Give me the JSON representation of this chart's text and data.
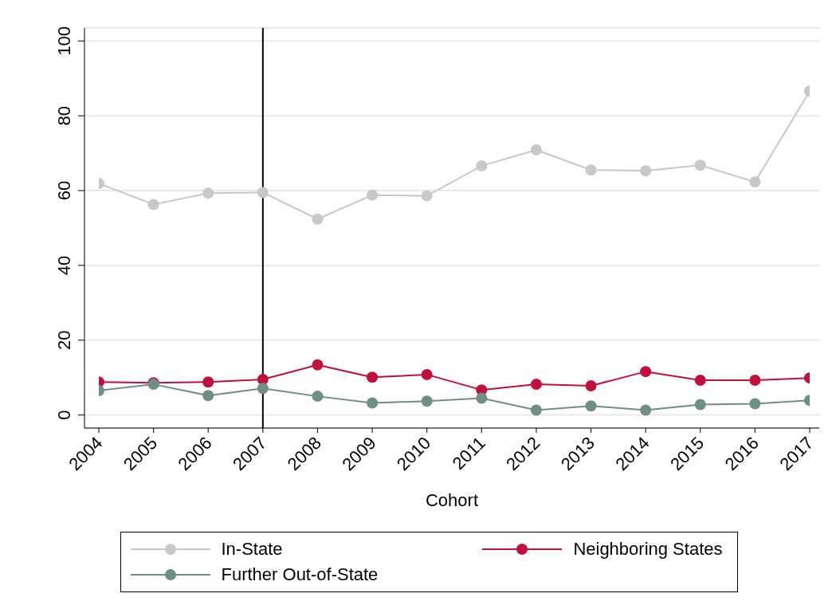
{
  "chart_data": {
    "type": "line",
    "xlabel": "Cohort",
    "categories": [
      "2004",
      "2005",
      "2006",
      "2007",
      "2008",
      "2009",
      "2010",
      "2011",
      "2012",
      "2013",
      "2014",
      "2015",
      "2016",
      "2017"
    ],
    "series": [
      {
        "name": "In-State",
        "color": "#c8c8c8",
        "values": [
          61.9,
          56.3,
          59.3,
          59.5,
          52.4,
          58.8,
          58.6,
          66.6,
          70.9,
          65.5,
          65.3,
          66.8,
          62.3,
          86.6
        ]
      },
      {
        "name": "Neighboring States",
        "color": "#c0103c",
        "values": [
          8.8,
          8.6,
          8.8,
          9.5,
          13.4,
          10.1,
          10.8,
          6.7,
          8.2,
          7.8,
          11.6,
          9.3,
          9.3,
          9.9
        ]
      },
      {
        "name": "Further Out-of-State",
        "color": "#6f8f82",
        "values": [
          6.5,
          8.2,
          5.2,
          7.1,
          5.0,
          3.2,
          3.7,
          4.5,
          1.3,
          2.4,
          1.3,
          2.8,
          3.0,
          3.9
        ]
      }
    ],
    "ylim": [
      -3.5,
      103.5
    ],
    "yticks": [
      0,
      20,
      40,
      60,
      80,
      100
    ],
    "grid": "y",
    "legend": "bottom",
    "marker": "circle",
    "line_style": "solid",
    "ref_lines": [
      {
        "axis": "x",
        "value": "2007",
        "color": "#000000"
      }
    ]
  }
}
